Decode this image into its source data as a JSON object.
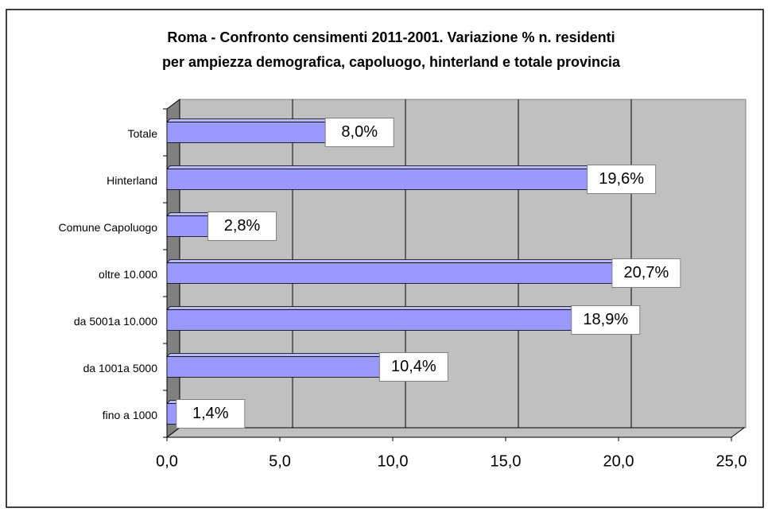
{
  "chart_data": {
    "type": "bar3d_horizontal",
    "title": [
      "Roma - Confronto censimenti 2011-2001. Variazione % n. residenti",
      "per ampiezza demografica, capoluogo, hinterland e totale provincia"
    ],
    "categories": [
      "fino a 1000",
      "da 1001a 5000",
      "da 5001a 10.000",
      "oltre 10.000",
      "Comune Capoluogo",
      "Hinterland",
      "Totale"
    ],
    "values": [
      1.4,
      10.4,
      18.9,
      20.7,
      2.8,
      19.6,
      8.0
    ],
    "value_labels": [
      "1,4%",
      "10,4%",
      "18,9%",
      "20,7%",
      "2,8%",
      "19,6%",
      "8,0%"
    ],
    "color": "#9999ff",
    "xlim": [
      0,
      25
    ],
    "xticks": [
      {
        "value": 0,
        "label": "0,0"
      },
      {
        "value": 5,
        "label": "5,0"
      },
      {
        "value": 10,
        "label": "10,0"
      },
      {
        "value": 15,
        "label": "15,0"
      },
      {
        "value": 20,
        "label": "20,0"
      },
      {
        "value": 25,
        "label": "25,0"
      }
    ],
    "grid": true
  }
}
